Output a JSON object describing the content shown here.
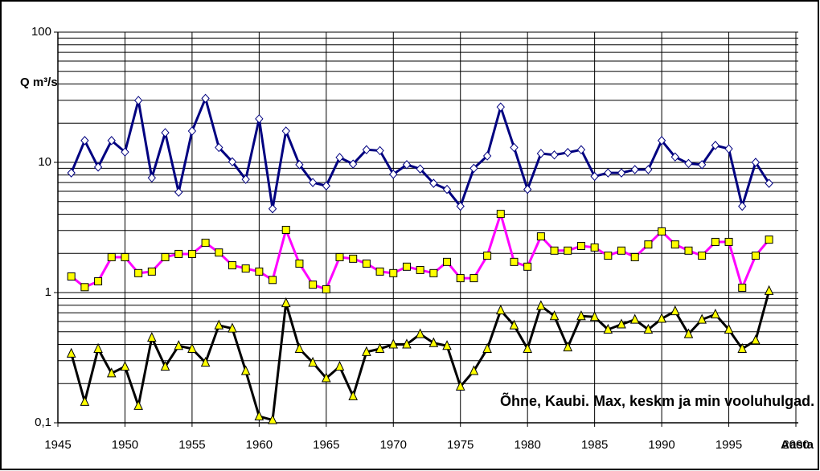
{
  "chart_data": {
    "type": "line",
    "y_label": "Q m³/s",
    "x_label": "Aasta",
    "annotation": "Õhne, Kaubi. Max, keskm ja min vooluhulgad.",
    "yscale": "log",
    "grid": true,
    "xlim": [
      1945,
      2000
    ],
    "xticks": [
      1945,
      1950,
      1955,
      1960,
      1965,
      1970,
      1975,
      1980,
      1985,
      1990,
      1995,
      2000
    ],
    "ylim": [
      0.1,
      100
    ],
    "yticks": [
      {
        "value": 0.1,
        "label": "0,1"
      },
      1,
      10,
      100
    ],
    "x": [
      1946,
      1947,
      1948,
      1949,
      1950,
      1951,
      1952,
      1953,
      1954,
      1955,
      1956,
      1957,
      1958,
      1959,
      1960,
      1961,
      1962,
      1963,
      1964,
      1965,
      1966,
      1967,
      1968,
      1969,
      1970,
      1971,
      1972,
      1973,
      1974,
      1975,
      1976,
      1977,
      1978,
      1979,
      1980,
      1981,
      1982,
      1983,
      1984,
      1985,
      1986,
      1987,
      1988,
      1989,
      1990,
      1991,
      1992,
      1993,
      1994,
      1995,
      1996,
      1997,
      1998
    ],
    "series": [
      {
        "color": "#000080",
        "marker": "diamond",
        "marker_fill": "#ffffff",
        "values": [
          8.3,
          14.7,
          9.2,
          14.7,
          12,
          29.9,
          7.6,
          16.9,
          5.9,
          17.4,
          31,
          13,
          10.1,
          7.4,
          21.6,
          4.4,
          17.4,
          9.6,
          7,
          6.6,
          10.9,
          9.7,
          12.5,
          12.3,
          8.1,
          9.6,
          8.9,
          6.9,
          6.2,
          4.6,
          9,
          11.2,
          26.6,
          13,
          6.2,
          11.7,
          11.4,
          11.9,
          12.5,
          7.8,
          8.3,
          8.3,
          8.8,
          8.8,
          14.7,
          11,
          9.8,
          9.6,
          13.5,
          12.7,
          4.6,
          10,
          6.9
        ]
      },
      {
        "color": "#ff00ff",
        "marker": "square",
        "marker_fill": "#ffff00",
        "values": [
          1.33,
          1.1,
          1.22,
          1.87,
          1.87,
          1.41,
          1.45,
          1.87,
          1.98,
          1.98,
          2.41,
          2.03,
          1.62,
          1.53,
          1.45,
          1.25,
          3.03,
          1.67,
          1.15,
          1.06,
          1.87,
          1.82,
          1.67,
          1.45,
          1.41,
          1.58,
          1.49,
          1.41,
          1.72,
          1.29,
          1.29,
          1.92,
          4.02,
          1.72,
          1.58,
          2.7,
          2.1,
          2.1,
          2.28,
          2.22,
          1.92,
          2.1,
          1.87,
          2.34,
          2.95,
          2.34,
          2.1,
          1.92,
          2.45,
          2.45,
          1.09,
          1.92,
          2.55
        ]
      },
      {
        "color": "#000000",
        "marker": "triangle",
        "marker_fill": "#ffff00",
        "values": [
          0.34,
          0.145,
          0.37,
          0.24,
          0.27,
          0.135,
          0.45,
          0.27,
          0.39,
          0.37,
          0.29,
          0.56,
          0.53,
          0.25,
          0.112,
          0.105,
          0.83,
          0.37,
          0.29,
          0.22,
          0.27,
          0.16,
          0.35,
          0.37,
          0.4,
          0.4,
          0.48,
          0.41,
          0.39,
          0.19,
          0.25,
          0.37,
          0.73,
          0.56,
          0.37,
          0.79,
          0.66,
          0.38,
          0.66,
          0.65,
          0.52,
          0.57,
          0.62,
          0.52,
          0.63,
          0.72,
          0.48,
          0.62,
          0.68,
          0.52,
          0.37,
          0.43,
          1.03
        ]
      }
    ]
  }
}
